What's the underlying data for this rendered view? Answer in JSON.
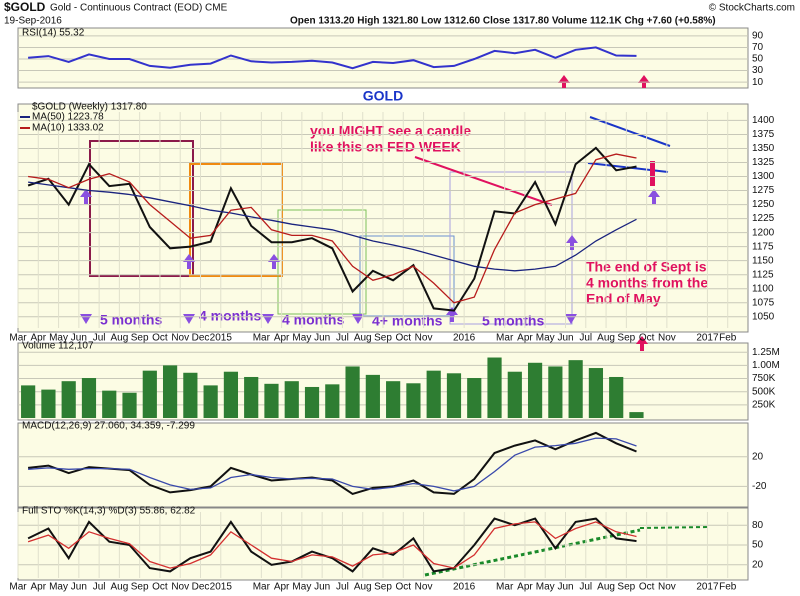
{
  "header": {
    "symbol": "$GOLD",
    "name": "Gold - Continuous Contract (EOD) CME",
    "date": "19-Sep-2016",
    "quote": "Open 1313.20   High 1321.80   Low 1312.60   Close 1317.80   Volume 112.1K   Chg +7.60 (+0.58%)",
    "source": "© StockCharts.com"
  },
  "annotations": {
    "gold": "GOLD",
    "fed1": "you  MIGHT see a candle",
    "fed2": "like this on FED WEEK",
    "sept1": "The end of Sept is",
    "sept2": "4 months from the",
    "sept3": "End of May",
    "m1": "5 months",
    "m2": "4 months",
    "m3": "4 months",
    "m4": "4+ months",
    "m5": "5 months"
  },
  "chart_data": [
    {
      "type": "line",
      "title": "$GOLD (Weekly) 1317.80",
      "categories": [
        "Mar",
        "Apr",
        "May",
        "Jun",
        "Jul",
        "Aug",
        "Sep",
        "Oct",
        "Nov",
        "Dec",
        "2015",
        null,
        "Mar",
        "Apr",
        "May",
        "Jun",
        "Jul",
        "Aug",
        "Sep",
        "Oct",
        "Nov",
        null,
        "2016",
        null,
        "Mar",
        "Apr",
        "May",
        "Jun",
        "Jul",
        "Aug",
        "Sep",
        "Oct",
        "Nov",
        null,
        "2017",
        "Feb"
      ],
      "series": [
        {
          "name": "$GOLD",
          "color": "#111111",
          "values": [
            1284,
            1296,
            1250,
            1322,
            1283,
            1287,
            1210,
            1172,
            1175,
            1184,
            1279,
            1212,
            1183,
            1183,
            1190,
            1172,
            1095,
            1132,
            1115,
            1142,
            1065,
            1061,
            1118,
            1238,
            1234,
            1290,
            1215,
            1322,
            1351,
            1311,
            1317.8,
            null,
            null,
            null,
            null,
            null
          ]
        },
        {
          "name": "MA(50) 1223.78",
          "color": "#1a237e",
          "values": [
            1290,
            1285,
            1280,
            1275,
            1272,
            1268,
            1262,
            1255,
            1248,
            1240,
            1235,
            1228,
            1222,
            1215,
            1210,
            1205,
            1195,
            1185,
            1178,
            1170,
            1160,
            1150,
            1140,
            1135,
            1132,
            1135,
            1140,
            1160,
            1185,
            1205,
            1223.78,
            null,
            null,
            null,
            null,
            null
          ]
        },
        {
          "name": "MA(10) 1333.02",
          "color": "#b71c1c",
          "values": [
            1300,
            1295,
            1280,
            1295,
            1305,
            1290,
            1250,
            1220,
            1190,
            1195,
            1240,
            1245,
            1205,
            1195,
            1195,
            1185,
            1140,
            1115,
            1125,
            1140,
            1110,
            1075,
            1085,
            1170,
            1235,
            1250,
            1260,
            1270,
            1330,
            1340,
            1333.02,
            null,
            null,
            null,
            null,
            null
          ]
        }
      ],
      "ylim": [
        1030,
        1415
      ],
      "yticks": [
        1050,
        1075,
        1100,
        1125,
        1150,
        1175,
        1200,
        1225,
        1250,
        1275,
        1300,
        1325,
        1350,
        1375,
        1400
      ],
      "grid": true
    },
    {
      "type": "line",
      "title": "RSI(14) 55.32",
      "series": [
        {
          "name": "RSI(14) 55.32",
          "color": "#3333cc",
          "values": [
            52,
            55,
            45,
            58,
            50,
            50,
            38,
            35,
            40,
            42,
            56,
            46,
            44,
            45,
            47,
            44,
            34,
            45,
            43,
            48,
            36,
            38,
            50,
            64,
            60,
            66,
            52,
            66,
            70,
            56,
            55.32,
            null,
            null,
            null,
            null,
            null
          ]
        }
      ],
      "ylim": [
        5,
        95
      ],
      "yticks": [
        10,
        30,
        50,
        70,
        90
      ],
      "grid": true
    },
    {
      "type": "bar",
      "title": "Volume 112,107",
      "series": [
        {
          "name": "Volume 112,107",
          "color": "#2e7d32",
          "values": [
            620000,
            540000,
            700000,
            760000,
            520000,
            480000,
            900000,
            1000000,
            860000,
            620000,
            880000,
            780000,
            650000,
            700000,
            590000,
            640000,
            980000,
            820000,
            700000,
            660000,
            900000,
            850000,
            760000,
            1150000,
            880000,
            1050000,
            980000,
            1100000,
            950000,
            780000,
            112107,
            null,
            null,
            null,
            null,
            null
          ]
        }
      ],
      "ylim": [
        0,
        1350000
      ],
      "yticks": [
        {
          "value": 250000,
          "label": "250K"
        },
        {
          "value": 500000,
          "label": "500K"
        },
        {
          "value": 750000,
          "label": "750K"
        },
        {
          "value": 1000000,
          "label": "1.00M"
        },
        {
          "value": 1250000,
          "label": "1.25M"
        }
      ],
      "grid": true
    },
    {
      "type": "line",
      "title": "MACD(12,26,9) 27.060, 34.359, -7.299",
      "series": [
        {
          "name": "MACD",
          "color": "#111111",
          "values": [
            5,
            8,
            -2,
            6,
            4,
            2,
            -18,
            -28,
            -25,
            -20,
            5,
            -4,
            -12,
            -10,
            -8,
            -12,
            -30,
            -22,
            -20,
            -12,
            -28,
            -30,
            -10,
            25,
            35,
            42,
            30,
            42,
            52,
            38,
            27.06,
            null,
            null,
            null,
            null,
            null
          ]
        },
        {
          "name": "Signal",
          "color": "#3949ab",
          "values": [
            3,
            5,
            3,
            4,
            4,
            3,
            -8,
            -18,
            -24,
            -22,
            -8,
            -4,
            -8,
            -10,
            -9,
            -10,
            -20,
            -24,
            -21,
            -16,
            -20,
            -26,
            -20,
            0,
            22,
            33,
            35,
            38,
            45,
            44,
            34.359,
            null,
            null,
            null,
            null,
            null
          ]
        }
      ],
      "ylim": [
        -45,
        60
      ],
      "yticks": [
        -20,
        20
      ],
      "grid": true
    },
    {
      "type": "line",
      "title": "Full STO %K(14,3) %D(3) 55.86, 62.82",
      "categories": [
        "Mar",
        "Apr",
        "May",
        "Jun",
        "Jul",
        "Aug",
        "Sep",
        "Oct",
        "Nov",
        "Dec",
        "2015",
        null,
        "Mar",
        "Apr",
        "May",
        "Jun",
        "Jul",
        "Aug",
        "Sep",
        "Oct",
        "Nov",
        null,
        "2016",
        null,
        "Mar",
        "Apr",
        "May",
        "Jun",
        "Jul",
        "Aug",
        "Sep",
        "Oct",
        "Nov",
        null,
        "2017",
        "Feb"
      ],
      "series": [
        {
          "name": "%K",
          "color": "#111111",
          "values": [
            60,
            75,
            30,
            85,
            55,
            50,
            15,
            10,
            30,
            40,
            85,
            40,
            20,
            25,
            40,
            30,
            10,
            45,
            35,
            60,
            10,
            15,
            50,
            90,
            80,
            90,
            45,
            85,
            90,
            60,
            55.86,
            null,
            null,
            null,
            null,
            null
          ]
        },
        {
          "name": "%D",
          "color": "#d32f2f",
          "values": [
            55,
            65,
            45,
            70,
            60,
            52,
            25,
            15,
            22,
            35,
            70,
            50,
            30,
            25,
            35,
            32,
            18,
            35,
            38,
            50,
            22,
            15,
            35,
            75,
            82,
            85,
            60,
            75,
            85,
            70,
            62.82,
            null,
            null,
            null,
            null,
            null
          ]
        }
      ],
      "ylim": [
        0,
        100
      ],
      "yticks": [
        20,
        50,
        80
      ],
      "grid": true
    }
  ]
}
